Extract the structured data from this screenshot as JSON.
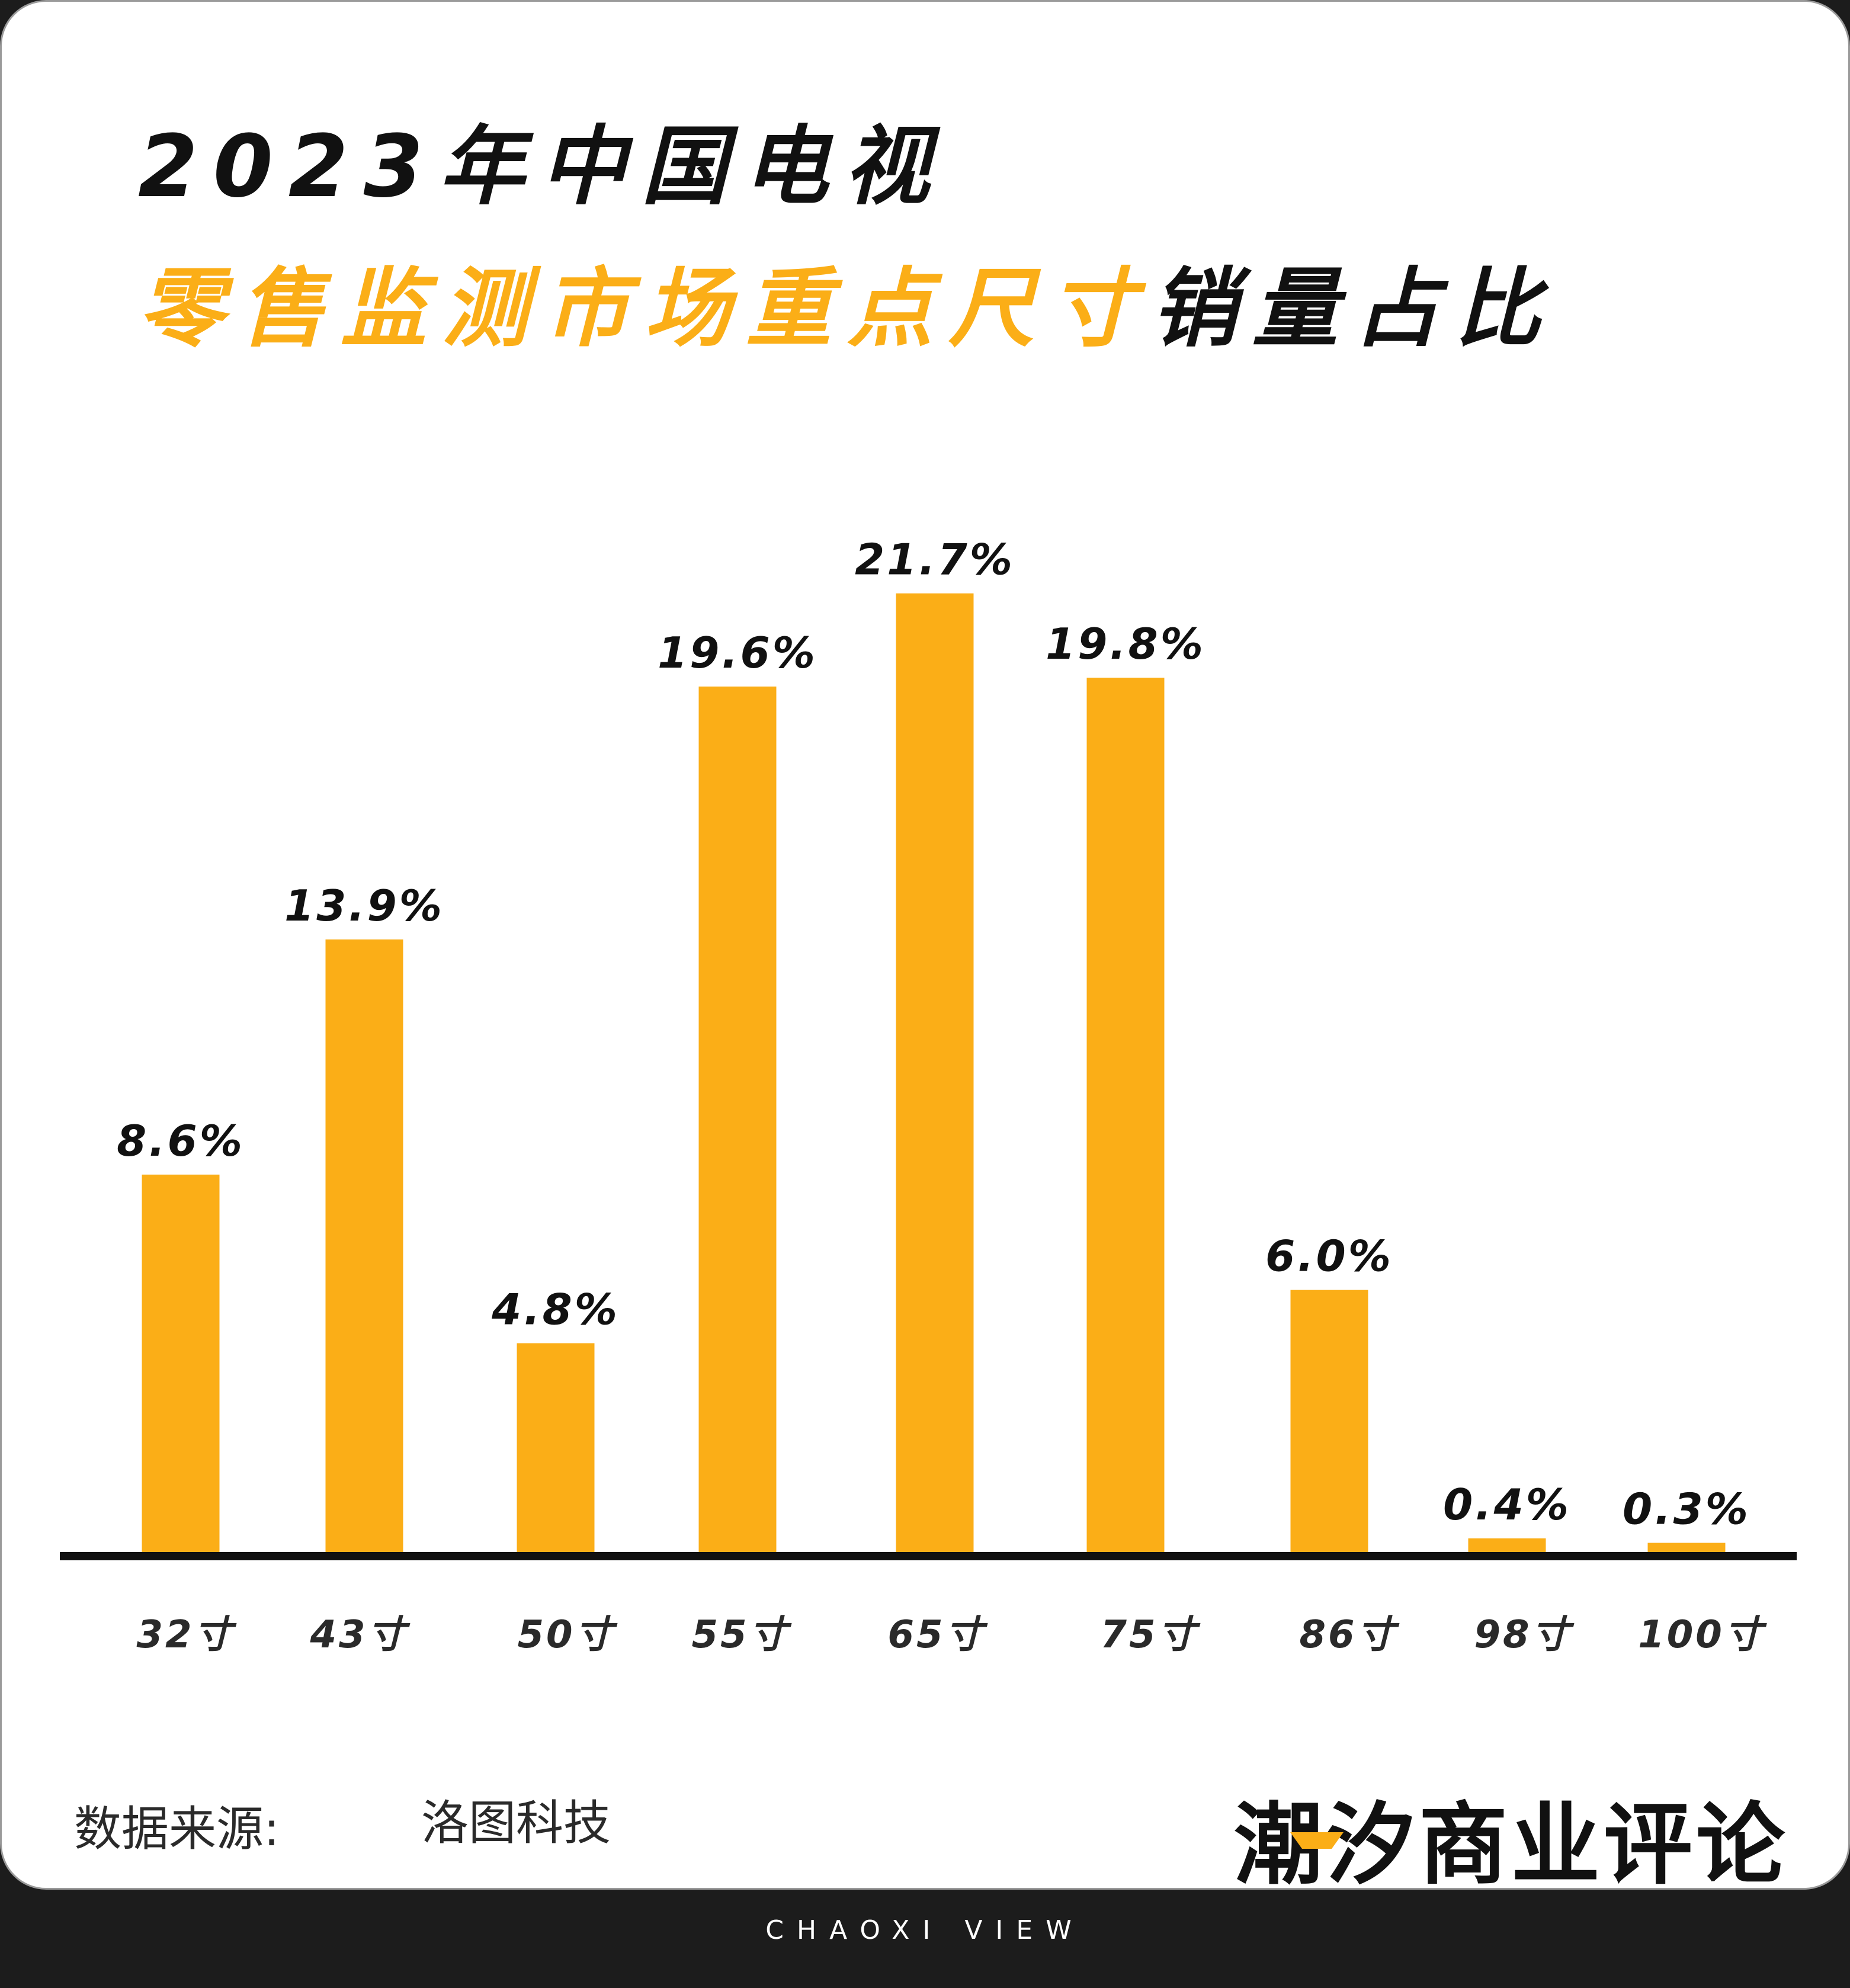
{
  "title": {
    "line1": "2023年中国电视",
    "line2_accent": "零售监测市场重点尺寸",
    "line2_dark": "销量占比"
  },
  "colors": {
    "bar": "#fbae17",
    "accent": "#fbae17",
    "text": "#111111",
    "footer_bg": "#1c1c1c"
  },
  "chart_data": {
    "type": "bar",
    "title": "2023年中国电视零售监测市场重点尺寸销量占比",
    "categories": [
      "32寸",
      "43寸",
      "50寸",
      "55寸",
      "65寸",
      "75寸",
      "86寸",
      "98寸",
      "100寸"
    ],
    "values": [
      8.6,
      13.9,
      4.8,
      19.6,
      21.7,
      19.8,
      6.0,
      0.4,
      0.3
    ],
    "value_labels": [
      "8.6%",
      "13.9%",
      "4.8%",
      "19.6%",
      "21.7%",
      "19.8%",
      "6.0%",
      "0.4%",
      "0.3%"
    ],
    "unit": "%",
    "xlabel": "",
    "ylabel": "",
    "ylim": [
      0,
      24
    ],
    "grid": false,
    "legend": "none"
  },
  "source": {
    "label": "数据来源:",
    "value": "洛图科技"
  },
  "brand": {
    "name": "潮汐商业评论",
    "tagline": "CHAOXI VIEW"
  }
}
